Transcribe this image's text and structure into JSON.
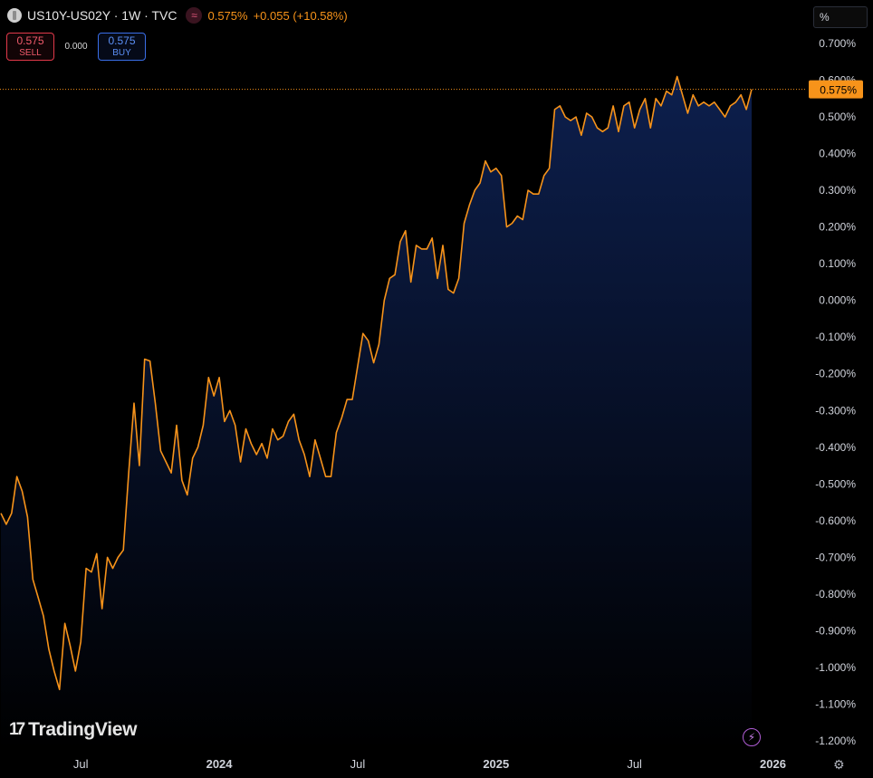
{
  "header": {
    "symbol_title": "US10Y-US02Y · 1W · TVC",
    "last": "0.575%",
    "change": "+0.055 (+10.58%)"
  },
  "trade": {
    "sell_price": "0.575",
    "sell_label": "SELL",
    "spread": "0.000",
    "buy_price": "0.575",
    "buy_label": "BUY"
  },
  "scale": {
    "unit": "%"
  },
  "brand": {
    "name": "TradingView"
  },
  "icons": {
    "symbol": "symbol-logo-icon",
    "compare": "wave-icon",
    "brand": "tradingview-logo-icon",
    "bolt": "lightning-icon",
    "settings": "gear-icon"
  },
  "colors": {
    "line": "#f7931a",
    "fill_top": "#0d1f4d",
    "background": "#000000",
    "last_label_bg": "#f7931a"
  },
  "chart_data": {
    "type": "area",
    "ylabel": "",
    "xlabel": "",
    "ylim": [
      -1.22,
      0.73
    ],
    "y_ticks": [
      0.7,
      0.6,
      0.5,
      0.4,
      0.3,
      0.2,
      0.1,
      0.0,
      -0.1,
      -0.2,
      -0.3,
      -0.4,
      -0.5,
      -0.6,
      -0.7,
      -0.8,
      -0.9,
      -1.0,
      -1.1,
      -1.2
    ],
    "y_tick_labels": [
      "0.700%",
      "0.600%",
      "0.500%",
      "0.400%",
      "0.300%",
      "0.200%",
      "0.100%",
      "0.000%",
      "-0.100%",
      "-0.200%",
      "-0.300%",
      "-0.400%",
      "-0.500%",
      "-0.600%",
      "-0.700%",
      "-0.800%",
      "-0.900%",
      "-1.000%",
      "-1.100%",
      "-1.200%"
    ],
    "x_ticks": [
      {
        "label": "Jul",
        "week": 15
      },
      {
        "label": "2024",
        "week": 41
      },
      {
        "label": "Jul",
        "week": 67
      },
      {
        "label": "2025",
        "week": 93
      },
      {
        "label": "Jul",
        "week": 119
      },
      {
        "label": "2026",
        "week": 145
      }
    ],
    "last_value": 0.575,
    "last_label": "0.575%",
    "series": [
      {
        "values": [
          -0.58,
          -0.61,
          -0.58,
          -0.48,
          -0.52,
          -0.59,
          -0.76,
          -0.81,
          -0.86,
          -0.95,
          -1.01,
          -1.06,
          -0.88,
          -0.94,
          -1.01,
          -0.93,
          -0.73,
          -0.74,
          -0.69,
          -0.84,
          -0.7,
          -0.73,
          -0.7,
          -0.68,
          -0.47,
          -0.28,
          -0.45,
          -0.16,
          -0.165,
          -0.28,
          -0.41,
          -0.44,
          -0.47,
          -0.34,
          -0.49,
          -0.53,
          -0.43,
          -0.4,
          -0.34,
          -0.21,
          -0.26,
          -0.21,
          -0.33,
          -0.3,
          -0.34,
          -0.44,
          -0.35,
          -0.39,
          -0.42,
          -0.39,
          -0.43,
          -0.35,
          -0.38,
          -0.37,
          -0.33,
          -0.31,
          -0.38,
          -0.42,
          -0.48,
          -0.38,
          -0.43,
          -0.48,
          -0.48,
          -0.36,
          -0.32,
          -0.27,
          -0.27,
          -0.18,
          -0.09,
          -0.11,
          -0.17,
          -0.12,
          0.0,
          0.06,
          0.07,
          0.16,
          0.19,
          0.05,
          0.15,
          0.14,
          0.14,
          0.17,
          0.06,
          0.15,
          0.03,
          0.02,
          0.06,
          0.21,
          0.26,
          0.3,
          0.32,
          0.38,
          0.35,
          0.36,
          0.34,
          0.2,
          0.21,
          0.23,
          0.22,
          0.3,
          0.29,
          0.29,
          0.34,
          0.36,
          0.52,
          0.53,
          0.5,
          0.49,
          0.5,
          0.45,
          0.51,
          0.5,
          0.47,
          0.46,
          0.47,
          0.53,
          0.46,
          0.53,
          0.54,
          0.47,
          0.52,
          0.55,
          0.47,
          0.55,
          0.53,
          0.57,
          0.56,
          0.61,
          0.56,
          0.51,
          0.56,
          0.53,
          0.54,
          0.53,
          0.54,
          0.52,
          0.5,
          0.53,
          0.54,
          0.56,
          0.52,
          0.575
        ]
      }
    ]
  }
}
